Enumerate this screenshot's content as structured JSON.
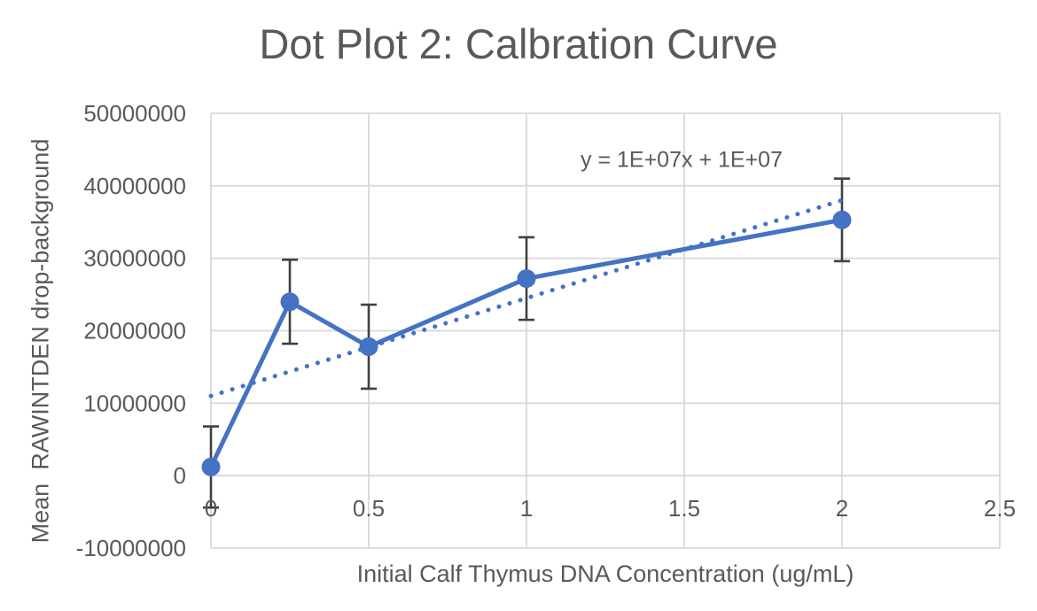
{
  "chart_data": {
    "type": "line",
    "title": "Dot Plot 2: Calbration Curve",
    "xlabel": "Initial Calf Thymus DNA Concentration (ug/mL)",
    "ylabel": "Mean  RAWINTDEN drop-background",
    "xlim": [
      0,
      2.5
    ],
    "ylim": [
      -10000000,
      50000000
    ],
    "grid": true,
    "legend": "none",
    "x_ticks": [
      0,
      0.5,
      1,
      1.5,
      2,
      2.5
    ],
    "x_tick_labels": [
      "0",
      "0.5",
      "1",
      "1.5",
      "2",
      "2.5"
    ],
    "y_ticks": [
      -10000000,
      0,
      10000000,
      20000000,
      30000000,
      40000000,
      50000000
    ],
    "y_tick_labels": [
      "-10000000",
      "0",
      "10000000",
      "20000000",
      "30000000",
      "40000000",
      "50000000"
    ],
    "series": [
      {
        "marker": "circle",
        "line_style": "solid",
        "x": [
          0,
          0.25,
          0.5,
          1,
          2
        ],
        "y": [
          1200000,
          24000000,
          17800000,
          27200000,
          35300000
        ],
        "y_error": [
          5600000,
          5800000,
          5800000,
          5700000,
          5700000
        ]
      }
    ],
    "trendline": {
      "style": "dotted",
      "slope": 13500000,
      "intercept": 11000000,
      "x_range": [
        0,
        2
      ],
      "equation_label": "y = 1E+07x + 1E+07"
    },
    "colors": {
      "series": "#4472C4",
      "trendline": "#4472C4",
      "error_bar": "#404040",
      "gridline": "#D9D9D9",
      "text": "#595959"
    }
  }
}
